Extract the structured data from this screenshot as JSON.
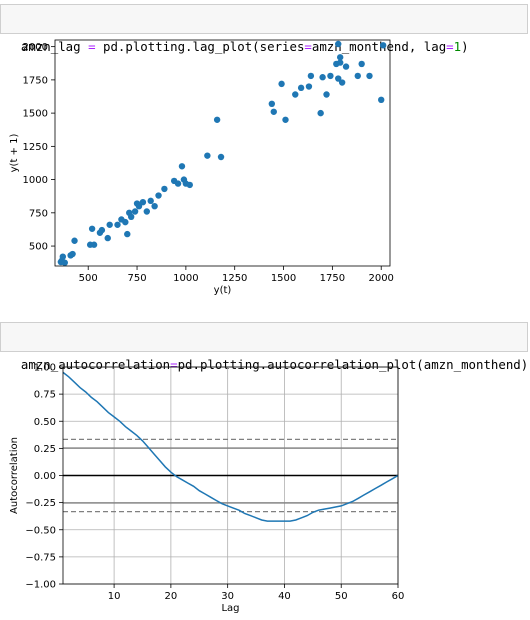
{
  "cells": [
    {
      "code_parts": [
        "amzn_lag ",
        "=",
        " pd.plotting.lag_plot(series",
        "=",
        "amzn_monthend, lag",
        "=",
        "1",
        ")"
      ]
    },
    {
      "code_parts": [
        "amzn_autocorrelation",
        "=",
        "pd.plotting.autocorrelation_plot(amzn_monthend)"
      ]
    }
  ],
  "chart_data": [
    {
      "type": "scatter",
      "title": "",
      "xlabel": "y(t)",
      "ylabel": "y(t + 1)",
      "xlim": [
        330,
        2045
      ],
      "ylim": [
        350,
        2050
      ],
      "xticks": [
        500,
        750,
        1000,
        1250,
        1500,
        1750,
        2000
      ],
      "yticks": [
        500,
        750,
        1000,
        1250,
        1500,
        1750,
        2000
      ],
      "grid": false,
      "marker_color": "#1f77b4",
      "points": [
        [
          360,
          380
        ],
        [
          365,
          390
        ],
        [
          370,
          420
        ],
        [
          380,
          375
        ],
        [
          410,
          430
        ],
        [
          420,
          440
        ],
        [
          430,
          540
        ],
        [
          510,
          510
        ],
        [
          520,
          630
        ],
        [
          530,
          510
        ],
        [
          560,
          600
        ],
        [
          570,
          620
        ],
        [
          600,
          560
        ],
        [
          610,
          660
        ],
        [
          650,
          660
        ],
        [
          670,
          700
        ],
        [
          690,
          680
        ],
        [
          700,
          590
        ],
        [
          710,
          750
        ],
        [
          720,
          720
        ],
        [
          740,
          760
        ],
        [
          750,
          820
        ],
        [
          760,
          800
        ],
        [
          780,
          830
        ],
        [
          800,
          760
        ],
        [
          820,
          840
        ],
        [
          840,
          800
        ],
        [
          860,
          880
        ],
        [
          890,
          930
        ],
        [
          940,
          990
        ],
        [
          960,
          970
        ],
        [
          980,
          1100
        ],
        [
          990,
          1000
        ],
        [
          1000,
          970
        ],
        [
          1020,
          960
        ],
        [
          1110,
          1180
        ],
        [
          1160,
          1450
        ],
        [
          1180,
          1170
        ],
        [
          1440,
          1570
        ],
        [
          1450,
          1510
        ],
        [
          1490,
          1720
        ],
        [
          1510,
          1450
        ],
        [
          1560,
          1640
        ],
        [
          1590,
          1690
        ],
        [
          1630,
          1700
        ],
        [
          1640,
          1780
        ],
        [
          1690,
          1500
        ],
        [
          1700,
          1770
        ],
        [
          1720,
          1640
        ],
        [
          1740,
          1780
        ],
        [
          1770,
          1870
        ],
        [
          1780,
          1760
        ],
        [
          1780,
          2020
        ],
        [
          1790,
          1920
        ],
        [
          1790,
          1880
        ],
        [
          1800,
          1730
        ],
        [
          1820,
          1850
        ],
        [
          1880,
          1780
        ],
        [
          1900,
          1870
        ],
        [
          1940,
          1780
        ],
        [
          2000,
          1600
        ],
        [
          2010,
          2010
        ]
      ]
    },
    {
      "type": "line",
      "title": "",
      "xlabel": "Lag",
      "ylabel": "Autocorrelation",
      "xlim": [
        1,
        60
      ],
      "ylim": [
        -1.0,
        1.0
      ],
      "xticks": [
        10,
        20,
        30,
        40,
        50,
        60
      ],
      "yticks": [
        -1.0,
        -0.75,
        -0.5,
        -0.25,
        0.0,
        0.25,
        0.5,
        0.75,
        1.0
      ],
      "ytick_labels": [
        "−1.00",
        "−0.75",
        "−0.50",
        "−0.25",
        "0.00",
        "0.25",
        "0.50",
        "0.75",
        "1.00"
      ],
      "grid": true,
      "line_color": "#1f77b4",
      "confidence_bands": {
        "solid": [
          0.253,
          -0.253
        ],
        "dashed": [
          0.333,
          -0.333
        ],
        "zero": 0.0
      },
      "x": [
        1,
        2,
        3,
        4,
        5,
        6,
        7,
        8,
        9,
        10,
        11,
        12,
        13,
        14,
        15,
        16,
        17,
        18,
        19,
        20,
        21,
        22,
        23,
        24,
        25,
        26,
        27,
        28,
        29,
        30,
        31,
        32,
        33,
        34,
        35,
        36,
        37,
        38,
        39,
        40,
        41,
        42,
        43,
        44,
        45,
        46,
        47,
        48,
        49,
        50,
        51,
        52,
        53,
        54,
        55,
        56,
        57,
        58,
        59,
        60
      ],
      "y": [
        0.95,
        0.91,
        0.86,
        0.81,
        0.77,
        0.72,
        0.68,
        0.63,
        0.58,
        0.54,
        0.5,
        0.45,
        0.41,
        0.37,
        0.32,
        0.26,
        0.2,
        0.14,
        0.08,
        0.03,
        -0.01,
        -0.04,
        -0.07,
        -0.1,
        -0.14,
        -0.17,
        -0.2,
        -0.23,
        -0.26,
        -0.28,
        -0.3,
        -0.32,
        -0.35,
        -0.37,
        -0.39,
        -0.41,
        -0.42,
        -0.42,
        -0.42,
        -0.42,
        -0.42,
        -0.41,
        -0.39,
        -0.37,
        -0.34,
        -0.32,
        -0.31,
        -0.3,
        -0.29,
        -0.28,
        -0.26,
        -0.24,
        -0.21,
        -0.18,
        -0.15,
        -0.12,
        -0.09,
        -0.06,
        -0.03,
        0.0
      ]
    }
  ]
}
